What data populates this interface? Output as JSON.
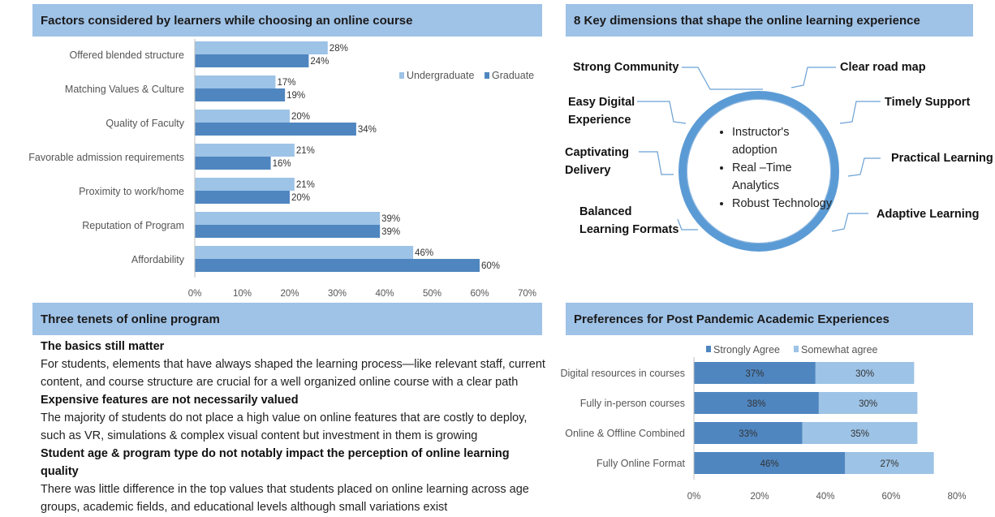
{
  "panels": {
    "top_left_title": "Factors considered by learners while choosing an online course",
    "top_right_title": "8 Key dimensions that shape the online learning experience",
    "bottom_left_title": "Three tenets of online program",
    "bottom_right_title": "Preferences for Post Pandemic Academic Experiences"
  },
  "colors": {
    "header": "#9fc2e7",
    "light_bar": "#9dc3e6",
    "dark_bar": "#4f86c0",
    "ring": "#5b9bd5"
  },
  "chart_data": [
    {
      "type": "bar",
      "orientation": "horizontal",
      "title": "Factors considered by learners while choosing an online course",
      "categories": [
        "Offered blended structure",
        "Matching Values & Culture",
        "Quality of Faculty",
        "Favorable admission requirements",
        "Proximity to work/home",
        "Reputation of Program",
        "Affordability"
      ],
      "series": [
        {
          "name": "Undergraduate",
          "values": [
            28,
            17,
            20,
            21,
            21,
            39,
            46
          ]
        },
        {
          "name": "Graduate",
          "values": [
            24,
            19,
            34,
            16,
            20,
            39,
            60
          ]
        }
      ],
      "xlim": [
        0,
        70
      ],
      "xticks": [
        "0%",
        "10%",
        "20%",
        "30%",
        "40%",
        "50%",
        "60%",
        "70%"
      ],
      "legend": "right",
      "grid": false
    },
    {
      "type": "bar",
      "orientation": "horizontal",
      "stacked": true,
      "title": "Preferences for Post Pandemic Academic Experiences",
      "categories": [
        "Digital resources in courses",
        "Fully in-person courses",
        "Online & Offline Combined",
        "Fully Online Format"
      ],
      "series": [
        {
          "name": "Strongly Agree",
          "values": [
            37,
            38,
            33,
            46
          ]
        },
        {
          "name": "Somewhat agree",
          "values": [
            30,
            30,
            35,
            27
          ]
        }
      ],
      "xlim": [
        0,
        80
      ],
      "xticks": [
        "0%",
        "20%",
        "40%",
        "60%",
        "80%"
      ],
      "legend": "top",
      "grid": false
    }
  ],
  "diagram": {
    "center_items": [
      "Instructor's adoption",
      "Real –Time Analytics",
      "Robust Technology"
    ],
    "left_labels": [
      "Strong Community",
      "Easy Digital Experience",
      "Captivating Delivery",
      "Balanced Learning Formats"
    ],
    "right_labels": [
      "Clear road map",
      "Timely Support",
      "Practical Learning",
      "Adaptive Learning"
    ]
  },
  "tenets": [
    {
      "heading": "The basics still matter",
      "body": "For students, elements that have always shaped the learning process—like relevant staff, current content, and course structure are crucial for a well organized online course with a clear path"
    },
    {
      "heading": "Expensive  features are not necessarily valued",
      "body": "The majority of students do not place a high value on online features that are costly to deploy, such as  VR, simulations & complex visual content but investment in them is growing"
    },
    {
      "heading": "Student age & program type do not notably impact the perception of online learning quality",
      "body": "There was little difference in the top values that students placed on online learning across age groups, academic fields, and educational levels although small variations exist"
    }
  ]
}
